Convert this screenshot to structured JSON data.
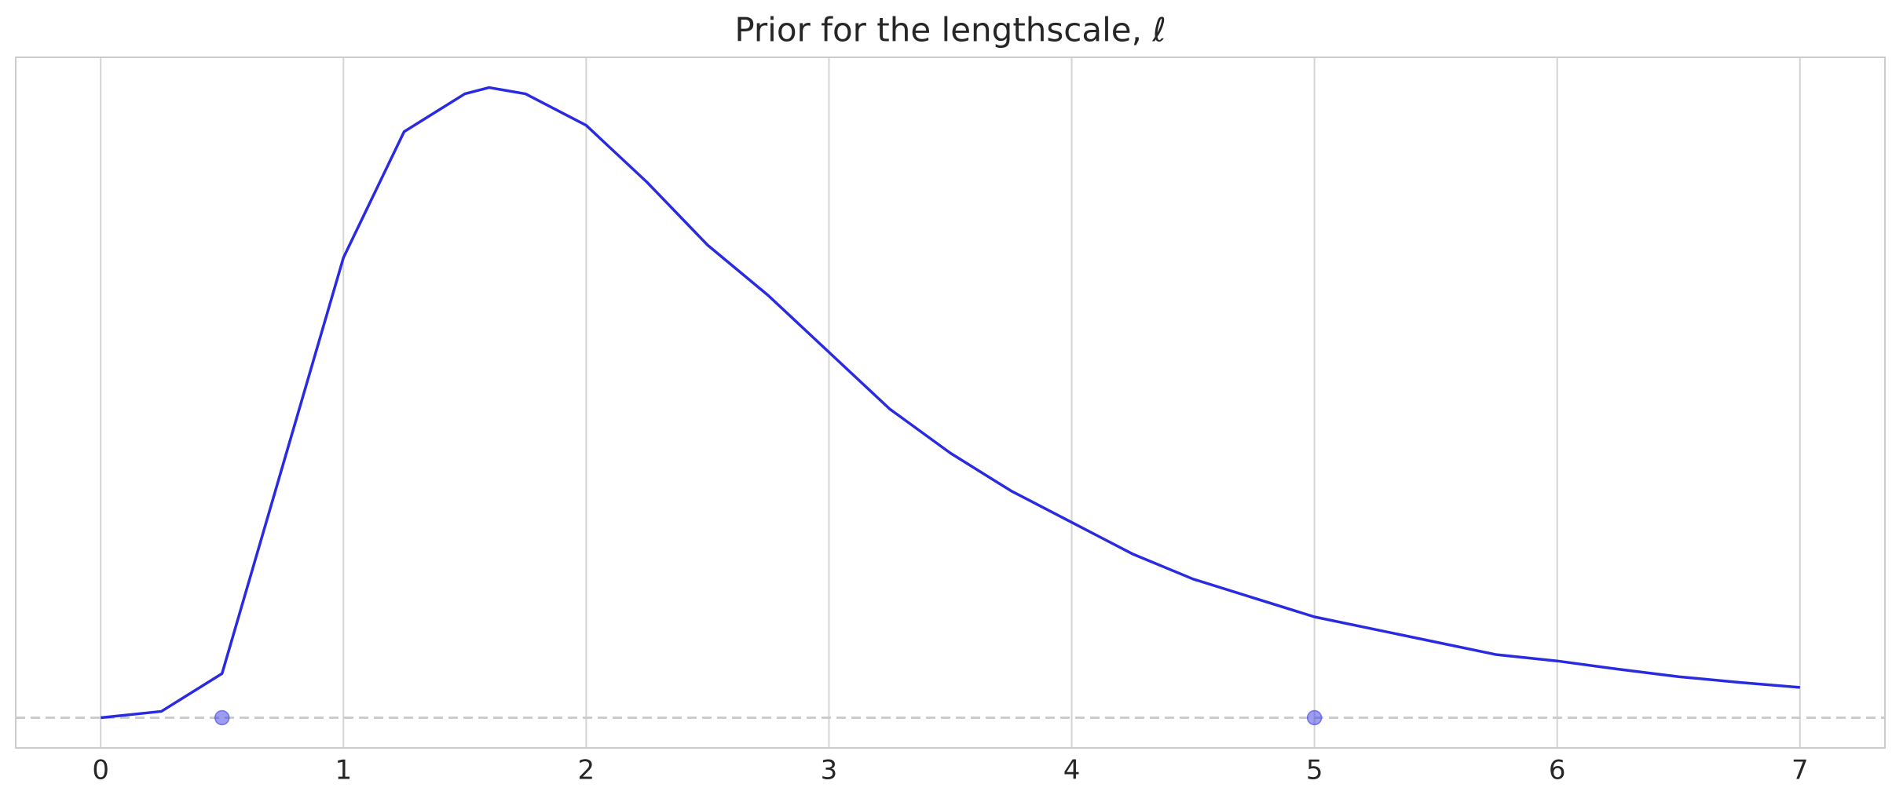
{
  "chart_data": {
    "type": "line",
    "title": "Prior for the lengthscale, ℓ",
    "series": [
      {
        "color": "#2a2ae0",
        "x": [
          0,
          0.25,
          0.5,
          0.75,
          1,
          1.25,
          1.5,
          1.6,
          1.75,
          2,
          2.25,
          2.5,
          2.75,
          3,
          3.25,
          3.5,
          3.75,
          4,
          4.25,
          4.5,
          4.75,
          5,
          5.25,
          5.5,
          5.75,
          6,
          6.25,
          6.5,
          6.75,
          7
        ],
        "values": [
          0,
          0.01,
          0.07,
          0.4,
          0.73,
          0.93,
          0.99,
          1.0,
          0.99,
          0.94,
          0.85,
          0.75,
          0.67,
          0.58,
          0.49,
          0.42,
          0.36,
          0.31,
          0.26,
          0.22,
          0.19,
          0.16,
          0.14,
          0.12,
          0.1,
          0.09,
          0.077,
          0.065,
          0.056,
          0.048
        ]
      }
    ],
    "points": {
      "color": "#3a3ae8",
      "x": [
        0.5,
        5
      ],
      "values": [
        0,
        0
      ]
    },
    "baseline": 0,
    "xlim": [
      -0.35,
      7.35
    ],
    "xticks": [
      0,
      1,
      2,
      3,
      4,
      5,
      6,
      7
    ],
    "ylim": [
      -0.048,
      1.048
    ],
    "grid": true
  }
}
